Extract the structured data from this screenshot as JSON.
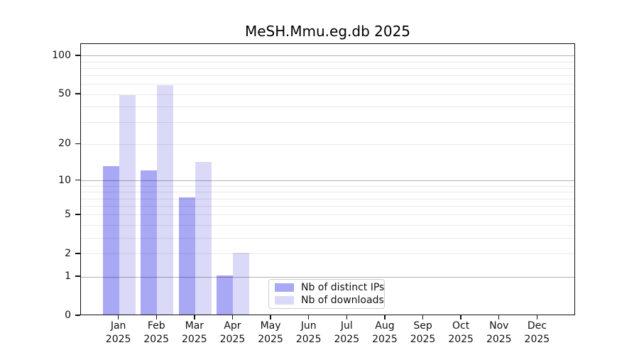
{
  "figure": {
    "title": "MeSH.Mmu.eg.db 2025"
  },
  "chart_data": {
    "type": "bar",
    "title": "MeSH.Mmu.eg.db 2025",
    "categories": [
      "Jan 2025",
      "Feb 2025",
      "Mar 2025",
      "Apr 2025",
      "May 2025",
      "Jun 2025",
      "Jul 2025",
      "Aug 2025",
      "Sep 2025",
      "Oct 2025",
      "Nov 2025",
      "Dec 2025"
    ],
    "months": [
      {
        "month": "Jan",
        "year": "2025"
      },
      {
        "month": "Feb",
        "year": "2025"
      },
      {
        "month": "Mar",
        "year": "2025"
      },
      {
        "month": "Apr",
        "year": "2025"
      },
      {
        "month": "May",
        "year": "2025"
      },
      {
        "month": "Jun",
        "year": "2025"
      },
      {
        "month": "Jul",
        "year": "2025"
      },
      {
        "month": "Aug",
        "year": "2025"
      },
      {
        "month": "Sep",
        "year": "2025"
      },
      {
        "month": "Oct",
        "year": "2025"
      },
      {
        "month": "Nov",
        "year": "2025"
      },
      {
        "month": "Dec",
        "year": "2025"
      }
    ],
    "series": [
      {
        "name": "Nb of distinct IPs",
        "color": "#a8a8f4",
        "values": [
          13,
          12,
          7,
          1,
          0,
          0,
          0,
          0,
          0,
          0,
          0,
          0
        ]
      },
      {
        "name": "Nb of downloads",
        "color": "#dadaf8",
        "values": [
          48,
          58,
          14,
          2,
          0,
          0,
          0,
          0,
          0,
          0,
          0,
          0
        ]
      }
    ],
    "y_axis": {
      "scale": "log1p",
      "min": 0,
      "max": 124,
      "tick_labels": [
        0,
        1,
        2,
        5,
        10,
        20,
        50,
        100
      ],
      "major_gridlines": [
        1,
        10,
        100
      ],
      "minor_gridlines": [
        2,
        3,
        4,
        5,
        6,
        7,
        8,
        9,
        20,
        30,
        40,
        50,
        60,
        70,
        80,
        90
      ]
    },
    "x_axis": {
      "tick_count": 12
    },
    "legend": {
      "position": "lower center"
    },
    "grid": true
  }
}
